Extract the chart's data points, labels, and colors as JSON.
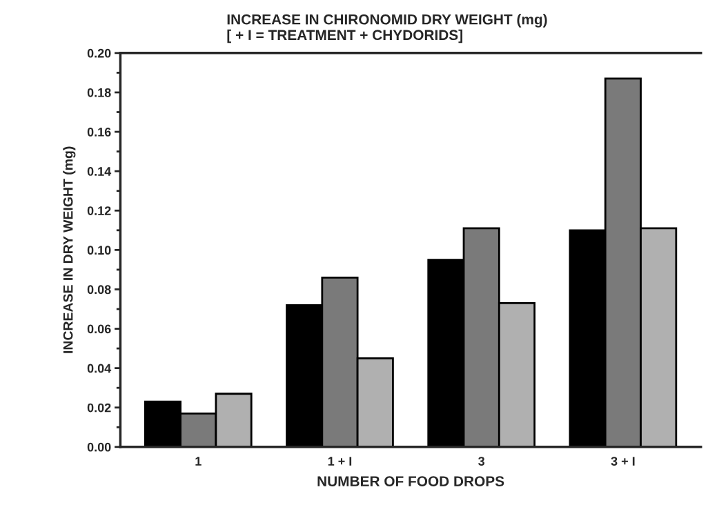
{
  "chart_data": {
    "type": "bar",
    "title": "INCREASE IN CHIRONOMID DRY WEIGHT (mg)\n[ + I = TREATMENT + CHYDORIDS]",
    "xlabel": "NUMBER OF FOOD DROPS",
    "ylabel": "INCREASE IN DRY WEIGHT (mg)",
    "categories": [
      "1",
      "1 + I",
      "3",
      "3 + I"
    ],
    "series": [
      {
        "color": "#000000",
        "values": [
          0.023,
          0.072,
          0.095,
          0.11
        ]
      },
      {
        "color": "#7a7a7a",
        "values": [
          0.017,
          0.086,
          0.111,
          0.187
        ]
      },
      {
        "color": "#b0b0b0",
        "values": [
          0.027,
          0.045,
          0.073,
          0.111
        ]
      }
    ],
    "ylim": [
      0,
      0.2
    ],
    "yticks": [
      {
        "value": 0,
        "label": "0.00"
      },
      {
        "value": 0.02,
        "label": "0.02"
      },
      {
        "value": 0.04,
        "label": "0.04"
      },
      {
        "value": 0.06,
        "label": "0.06"
      },
      {
        "value": 0.08,
        "label": "0.08"
      },
      {
        "value": 0.1,
        "label": "0.10"
      },
      {
        "value": 0.12,
        "label": "0.12"
      },
      {
        "value": 0.14,
        "label": "0.14"
      },
      {
        "value": 0.16,
        "label": "0.16"
      },
      {
        "value": 0.18,
        "label": "0.18"
      },
      {
        "value": 0.2,
        "label": "0.20"
      }
    ],
    "grid": false,
    "legend": false
  }
}
